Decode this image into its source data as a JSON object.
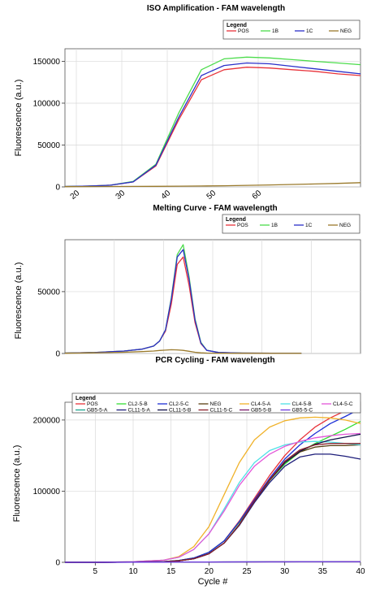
{
  "chart_data": [
    {
      "id": "iso",
      "type": "line",
      "title": "ISO Amplification - FAM wavelength",
      "xlabel": "",
      "ylabel": "Fluorescence (a.u.)",
      "ylim": [
        0,
        165000
      ],
      "yticks": [
        "0",
        "50000",
        "100000",
        "150000"
      ],
      "yticks_values": [
        0,
        50000,
        100000,
        150000
      ],
      "xticks": [
        "20",
        "30",
        "40",
        "50",
        "60"
      ],
      "x": [
        0,
        5,
        10,
        15,
        20,
        25,
        30,
        35,
        40,
        45,
        50,
        55,
        60,
        65
      ],
      "grid": true,
      "legend": {
        "title": "Legend",
        "placement": "top-right"
      },
      "series": [
        {
          "name": "POS",
          "color": "#e8333a",
          "values": [
            500,
            1000,
            2000,
            6000,
            25000,
            80000,
            128000,
            140000,
            143000,
            142000,
            140000,
            138000,
            135000,
            133000
          ]
        },
        {
          "name": "1B",
          "color": "#4cdc4c",
          "values": [
            500,
            1000,
            2000,
            6500,
            27000,
            88000,
            140000,
            153000,
            155000,
            154000,
            152000,
            150000,
            148000,
            146000
          ]
        },
        {
          "name": "1C",
          "color": "#2b2fc9",
          "values": [
            500,
            1000,
            2000,
            6000,
            26000,
            83000,
            133000,
            145000,
            148000,
            147000,
            144000,
            141000,
            138000,
            135000
          ]
        },
        {
          "name": "NEG",
          "color": "#9a7a2c",
          "values": [
            300,
            400,
            500,
            600,
            700,
            900,
            1100,
            1400,
            1800,
            2300,
            2900,
            3500,
            4200,
            5000
          ]
        }
      ]
    },
    {
      "id": "melt",
      "type": "line",
      "title": "Melting Curve - FAM wavelength",
      "xlabel": "",
      "ylabel": "Fluorescence (a.u.)",
      "ylim": [
        0,
        92000
      ],
      "yticks": [
        "0",
        "50000"
      ],
      "yticks_values": [
        0,
        50000
      ],
      "x": [
        0,
        5,
        10,
        13,
        15,
        16,
        17,
        18,
        19,
        20,
        21,
        22,
        23,
        24,
        26,
        30,
        35,
        40
      ],
      "grid": true,
      "legend": {
        "title": "Legend",
        "placement": "top-right"
      },
      "series": [
        {
          "name": "POS",
          "color": "#e8333a",
          "values": [
            300,
            800,
            2000,
            3500,
            6000,
            10000,
            18000,
            40000,
            72000,
            78000,
            55000,
            25000,
            8000,
            2500,
            800,
            300,
            200,
            100
          ]
        },
        {
          "name": "1B",
          "color": "#4cdc4c",
          "values": [
            300,
            800,
            2000,
            3500,
            6000,
            10000,
            19000,
            45000,
            80000,
            88000,
            62000,
            28000,
            9000,
            2600,
            800,
            300,
            200,
            100
          ]
        },
        {
          "name": "1C",
          "color": "#2b2fc9",
          "values": [
            300,
            800,
            2000,
            3500,
            6000,
            10000,
            19000,
            44000,
            78000,
            84000,
            60000,
            27000,
            8500,
            2500,
            800,
            300,
            200,
            100
          ]
        },
        {
          "name": "NEG",
          "color": "#9a7a2c",
          "values": [
            200,
            500,
            1000,
            1500,
            2000,
            2400,
            2700,
            3000,
            2900,
            2500,
            1800,
            1000,
            500,
            300,
            200,
            100,
            100,
            100
          ]
        }
      ]
    },
    {
      "id": "pcr",
      "type": "line",
      "title": "PCR Cycling - FAM wavelength",
      "xlabel": "Cycle #",
      "ylabel": "Fluorescence (a.u.)",
      "ylim": [
        0,
        225000
      ],
      "xlim": [
        1,
        40
      ],
      "yticks": [
        "0",
        "100000",
        "200000"
      ],
      "yticks_values": [
        0,
        100000,
        200000
      ],
      "xticks": [
        "5",
        "10",
        "15",
        "20",
        "25",
        "30",
        "35",
        "40"
      ],
      "xticks_values": [
        5,
        10,
        15,
        20,
        25,
        30,
        35,
        40
      ],
      "x": [
        1,
        5,
        10,
        14,
        16,
        18,
        20,
        22,
        24,
        26,
        28,
        30,
        32,
        34,
        36,
        38,
        40
      ],
      "grid": true,
      "legend": {
        "title": "Legend",
        "placement": "top"
      },
      "series": [
        {
          "name": "POS",
          "color": "#e8333a",
          "values": [
            0,
            0,
            300,
            1000,
            2500,
            6000,
            14000,
            30000,
            58000,
            90000,
            122000,
            150000,
            172000,
            190000,
            203000,
            213000,
            222000
          ]
        },
        {
          "name": "CL2-5-B",
          "color": "#33dd33",
          "values": [
            0,
            0,
            300,
            1000,
            2500,
            6000,
            14000,
            30000,
            56000,
            87000,
            115000,
            138000,
            155000,
            167000,
            177000,
            187000,
            198000
          ]
        },
        {
          "name": "CL2-5-C",
          "color": "#1c2ed6",
          "values": [
            0,
            0,
            300,
            1000,
            2500,
            6000,
            14000,
            30000,
            57000,
            88000,
            118000,
            145000,
            165000,
            181000,
            195000,
            205000,
            216000
          ]
        },
        {
          "name": "NEG",
          "color": "#5a4012",
          "values": [
            0,
            0,
            300,
            800,
            2000,
            5000,
            12000,
            27000,
            52000,
            85000,
            115000,
            140000,
            155000,
            162000,
            164000,
            164000,
            165000
          ]
        },
        {
          "name": "CL4-5-A",
          "color": "#f0b22a",
          "values": [
            0,
            0,
            800,
            3000,
            8000,
            22000,
            50000,
            95000,
            140000,
            172000,
            190000,
            199000,
            203000,
            204000,
            203000,
            200000,
            195000
          ]
        },
        {
          "name": "CL4-5-B",
          "color": "#4fe0e6",
          "values": [
            0,
            0,
            800,
            3000,
            7000,
            18000,
            40000,
            75000,
            112000,
            140000,
            157000,
            165000,
            169000,
            170000,
            169000,
            167000,
            165000
          ]
        },
        {
          "name": "CL4-5-C",
          "color": "#e356d8",
          "values": [
            0,
            0,
            800,
            3000,
            7000,
            18000,
            40000,
            72000,
            108000,
            135000,
            152000,
            163000,
            170000,
            175000,
            178000,
            180000,
            181000
          ]
        },
        {
          "name": "GB5-5-A",
          "color": "#1aa58e",
          "values": [
            0,
            0,
            200,
            300,
            400,
            500,
            500,
            600,
            600,
            700,
            700,
            700,
            700,
            700,
            800,
            800,
            800
          ]
        },
        {
          "name": "CL11-5-A",
          "color": "#1d1d7a",
          "values": [
            0,
            0,
            300,
            800,
            2000,
            5000,
            12000,
            27000,
            52000,
            84000,
            112000,
            135000,
            148000,
            152000,
            152000,
            149000,
            145000
          ]
        },
        {
          "name": "CL11-5-B",
          "color": "#10104a",
          "values": [
            0,
            0,
            300,
            800,
            2000,
            5000,
            12000,
            27000,
            53000,
            86000,
            116000,
            140000,
            156000,
            166000,
            172000,
            176000,
            180000
          ]
        },
        {
          "name": "CL11-5-C",
          "color": "#8a1e2a",
          "values": [
            0,
            0,
            300,
            800,
            2000,
            5000,
            12000,
            27000,
            53000,
            86000,
            116000,
            142000,
            158000,
            165000,
            167000,
            167000,
            167000
          ]
        },
        {
          "name": "GB5-5-B",
          "color": "#7a1a6a",
          "values": [
            0,
            0,
            200,
            300,
            400,
            500,
            500,
            600,
            600,
            600,
            700,
            700,
            700,
            700,
            700,
            800,
            800
          ]
        },
        {
          "name": "GB5-5-C",
          "color": "#6b38e0",
          "values": [
            0,
            0,
            200,
            300,
            400,
            500,
            500,
            500,
            600,
            600,
            600,
            600,
            700,
            700,
            700,
            700,
            700
          ]
        }
      ]
    }
  ]
}
